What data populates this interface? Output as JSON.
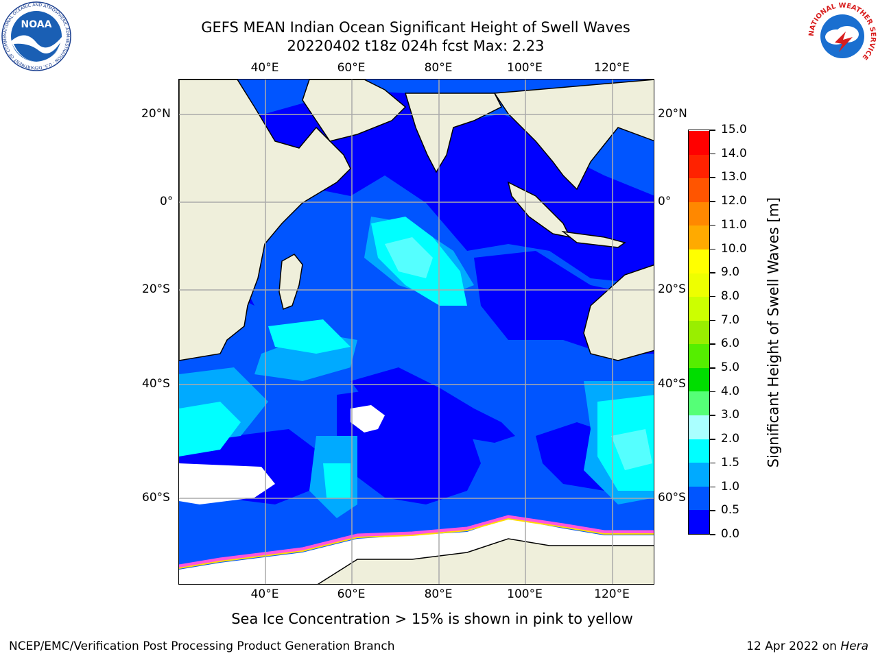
{
  "title_line1": "GEFS MEAN Indian Ocean Significant Height of Swell Waves",
  "title_line2": "20220402 t18z 024h fcst   Max: 2.23",
  "lon_labels": [
    "40°E",
    "60°E",
    "80°E",
    "100°E",
    "120°E"
  ],
  "lat_labels": [
    "20°N",
    "0°",
    "20°S",
    "40°S",
    "60°S"
  ],
  "colorbar": {
    "label": "Significant Height of Swell Waves [m]",
    "ticks": [
      "0.0",
      "0.5",
      "1.0",
      "1.5",
      "2.0",
      "3.0",
      "4.0",
      "5.0",
      "6.0",
      "7.0",
      "8.0",
      "9.0",
      "10.0",
      "11.0",
      "12.0",
      "13.0",
      "14.0",
      "15.0"
    ],
    "colors": [
      "#0000ff",
      "#0055ff",
      "#00aaff",
      "#00ffff",
      "#55ffff",
      "#aaffff",
      "#55ff77",
      "#00dd00",
      "#55ee00",
      "#99ee00",
      "#ccff00",
      "#eeff00",
      "#ffff00",
      "#ffdd00",
      "#ffaa00",
      "#ff8800",
      "#ff5500",
      "#ff2200",
      "#ff0000"
    ]
  },
  "map_colors": {
    "land": "#efefdb",
    "ice": "#ffffff",
    "swell_0_05": "#0000ff",
    "swell_05_10": "#0055ff",
    "swell_10_15": "#00aaff",
    "swell_15_20": "#00ffff",
    "swell_20_30": "#55ffff",
    "sea_ice": "#ff55dd",
    "grid": "#aaaaaa"
  },
  "caption": "Sea Ice Concentration > 15% is shown in pink to yellow",
  "footer_left": "NCEP/EMC/Verification Post Processing Product Generation Branch",
  "footer_date": "12 Apr 2022 on ",
  "footer_machine": "Hera",
  "logos": {
    "noaa_text": "NOAA",
    "noaa_ring": "NATIONAL OCEANIC AND ATMOSPHERIC ADMINISTRATION · U.S. DEPARTMENT OF COMMERCE",
    "nws_ring": "NATIONAL WEATHER SERVICE"
  }
}
